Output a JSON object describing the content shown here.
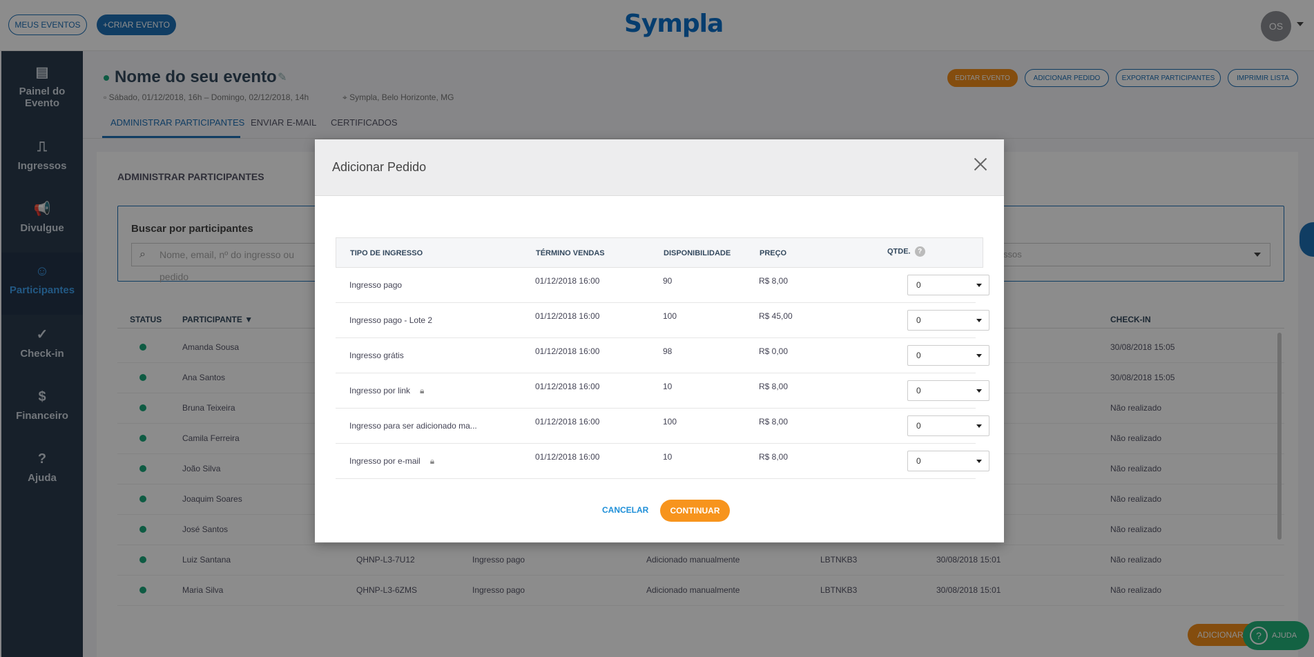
{
  "header": {
    "my_events": "MEUS EVENTOS",
    "create_event": "+CRIAR EVENTO",
    "logo": "Sympla",
    "avatar_initials": "OS"
  },
  "sidebar": {
    "items": [
      {
        "label": "Painel do Evento",
        "icon": "dashboard-icon"
      },
      {
        "label": "Ingressos",
        "icon": "ticket-icon"
      },
      {
        "label": "Divulgue",
        "icon": "megaphone-icon"
      },
      {
        "label": "Participantes",
        "icon": "people-icon"
      },
      {
        "label": "Check-in",
        "icon": "check-icon"
      },
      {
        "label": "Financeiro",
        "icon": "money-icon"
      },
      {
        "label": "Ajuda",
        "icon": "help-icon"
      }
    ]
  },
  "event": {
    "title": "Nome do seu evento",
    "date": "Sábado, 01/12/2018, 16h – Domingo, 02/12/2018, 14h",
    "location": "Sympla, Belo Horizonte, MG",
    "actions": {
      "edit": "EDITAR EVENTO",
      "add_order": "ADICIONAR PEDIDO",
      "export": "EXPORTAR PARTICIPANTES",
      "print": "IMPRIMIR LISTA"
    },
    "tabs": [
      "ADMINISTRAR PARTICIPANTES",
      "ENVIAR E-MAIL",
      "CERTIFICADOS"
    ]
  },
  "panel": {
    "title": "ADMINISTRAR PARTICIPANTES",
    "search_label": "Buscar por participantes",
    "search_placeholder": "Nome, email, nº do ingresso ou pedido",
    "filter_value": "ssos",
    "columns": {
      "status": "STATUS",
      "participant": "PARTICIPANTE",
      "checkin": "CHECK-IN"
    },
    "rows": [
      {
        "name": "Amanda Sousa",
        "checkin": "30/08/2018 15:05",
        "code": "",
        "ticket": "",
        "type": "",
        "order": "",
        "date": ""
      },
      {
        "name": "Ana Santos",
        "checkin": "30/08/2018 15:05",
        "code": "",
        "ticket": "",
        "type": "",
        "order": "",
        "date": ""
      },
      {
        "name": "Bruna Teixeira",
        "checkin": "Não realizado",
        "code": "",
        "ticket": "",
        "type": "",
        "order": "",
        "date": ""
      },
      {
        "name": "Camila Ferreira",
        "checkin": "Não realizado",
        "code": "",
        "ticket": "",
        "type": "",
        "order": "",
        "date": ""
      },
      {
        "name": "João Silva",
        "checkin": "Não realizado",
        "code": "",
        "ticket": "",
        "type": "",
        "order": "",
        "date": ""
      },
      {
        "name": "Joaquim Soares",
        "checkin": "Não realizado",
        "code": "",
        "ticket": "",
        "type": "",
        "order": "",
        "date": ""
      },
      {
        "name": "José Santos",
        "checkin": "Não realizado",
        "code": "",
        "ticket": "",
        "type": "",
        "order": "",
        "date": ""
      },
      {
        "name": "Luiz Santana",
        "checkin": "Não realizado",
        "code": "QHNP-L3-7U12",
        "ticket": "Ingresso pago",
        "type": "Adicionado manualmente",
        "order": "LBTNKB3",
        "date": "30/08/2018 15:01"
      },
      {
        "name": "Maria Silva",
        "checkin": "Não realizado",
        "code": "QHNP-L3-6ZMS",
        "ticket": "Ingresso pago",
        "type": "Adicionado manualmente",
        "order": "LBTNKB3",
        "date": "30/08/2018 15:01"
      }
    ],
    "add_button": "ADICIONAR",
    "help_bubble": "AJUDA"
  },
  "modal": {
    "title": "Adicionar Pedido",
    "columns": {
      "type": "TIPO DE INGRESSO",
      "end": "TÉRMINO VENDAS",
      "availability": "DISPONIBILIDADE",
      "price": "PREÇO",
      "qty": "QTDE."
    },
    "rows": [
      {
        "type": "Ingresso pago",
        "end": "01/12/2018 16:00",
        "availability": "90",
        "price": "R$ 8,00",
        "qty": "0",
        "locked": false
      },
      {
        "type": "Ingresso pago - Lote 2",
        "end": "01/12/2018 16:00",
        "availability": "100",
        "price": "R$ 45,00",
        "qty": "0",
        "locked": false
      },
      {
        "type": "Ingresso grátis",
        "end": "01/12/2018 16:00",
        "availability": "98",
        "price": "R$ 0,00",
        "qty": "0",
        "locked": false
      },
      {
        "type": "Ingresso por link",
        "end": "01/12/2018 16:00",
        "availability": "10",
        "price": "R$ 8,00",
        "qty": "0",
        "locked": true
      },
      {
        "type": "Ingresso para ser adicionado ma...",
        "end": "01/12/2018 16:00",
        "availability": "100",
        "price": "R$ 8,00",
        "qty": "0",
        "locked": false
      },
      {
        "type": "Ingresso por e-mail",
        "end": "01/12/2018 16:00",
        "availability": "10",
        "price": "R$ 8,00",
        "qty": "0",
        "locked": true
      }
    ],
    "cancel": "CANCELAR",
    "continue": "CONTINUAR"
  }
}
